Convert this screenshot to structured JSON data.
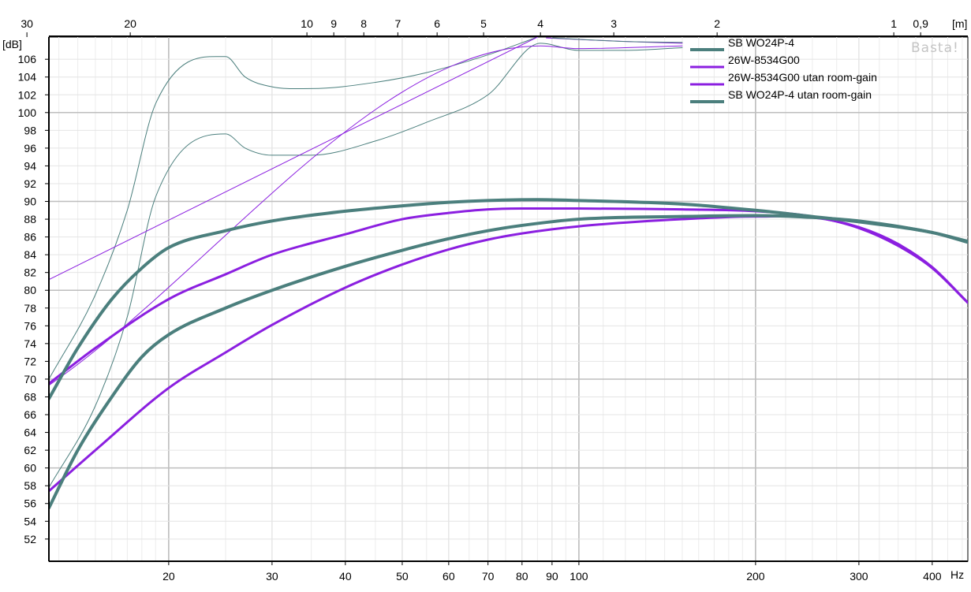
{
  "chart_data": {
    "type": "line",
    "title": "",
    "xlabel": "",
    "ylabel": "",
    "x_scale": "log",
    "xlim": [
      12.5,
      460
    ],
    "ylim": [
      49.5,
      108.5
    ],
    "grid": true,
    "legend_position": "top-right",
    "y_unit": "[dB]",
    "x_unit": "Hz",
    "top_axis_unit": "[m]",
    "watermark": "Basta!",
    "x_ticks": [
      {
        "value": 20,
        "label": "20",
        "major": true
      },
      {
        "value": 30,
        "label": "30"
      },
      {
        "value": 40,
        "label": "40"
      },
      {
        "value": 50,
        "label": "50"
      },
      {
        "value": 60,
        "label": "60"
      },
      {
        "value": 70,
        "label": "70"
      },
      {
        "value": 80,
        "label": "80"
      },
      {
        "value": 90,
        "label": "90"
      },
      {
        "value": 100,
        "label": "100",
        "major": true
      },
      {
        "value": 200,
        "label": "200",
        "major": true
      },
      {
        "value": 300,
        "label": "300"
      },
      {
        "value": 400,
        "label": "400"
      }
    ],
    "x_minor_ticks": [
      13,
      14,
      15,
      16,
      17,
      18,
      19,
      25,
      35,
      45,
      55,
      65,
      75,
      85,
      95,
      110,
      120,
      130,
      140,
      150,
      160,
      170,
      180,
      190,
      225,
      250,
      275,
      325,
      350,
      375,
      425,
      450
    ],
    "top_ticks": [
      {
        "value": 30,
        "label": "30"
      },
      {
        "value": 20,
        "label": "20"
      },
      {
        "value": 10,
        "label": "10"
      },
      {
        "value": 9,
        "label": "9"
      },
      {
        "value": 8,
        "label": "8"
      },
      {
        "value": 7,
        "label": "7"
      },
      {
        "value": 6,
        "label": "6"
      },
      {
        "value": 5,
        "label": "5"
      },
      {
        "value": 4,
        "label": "4"
      },
      {
        "value": 3,
        "label": "3"
      },
      {
        "value": 2,
        "label": "2"
      },
      {
        "value": 1,
        "label": "1"
      },
      {
        "value": 0.9,
        "label": "0,9"
      }
    ],
    "y_ticks": [
      52,
      54,
      56,
      58,
      60,
      62,
      64,
      66,
      68,
      70,
      72,
      74,
      76,
      78,
      80,
      82,
      84,
      86,
      88,
      90,
      92,
      94,
      96,
      98,
      100,
      102,
      104,
      106
    ],
    "series": [
      {
        "name": "SB WO24P-4",
        "color": "#4b7f7d",
        "width": 4,
        "legend": true,
        "points": [
          [
            12.5,
            67.8
          ],
          [
            14,
            73.5
          ],
          [
            16,
            79.0
          ],
          [
            18,
            82.5
          ],
          [
            20,
            84.8
          ],
          [
            25,
            86.7
          ],
          [
            30,
            87.8
          ],
          [
            40,
            88.9
          ],
          [
            50,
            89.5
          ],
          [
            60,
            89.9
          ],
          [
            70,
            90.1
          ],
          [
            85,
            90.2
          ],
          [
            100,
            90.1
          ],
          [
            150,
            89.7
          ],
          [
            200,
            89.0
          ],
          [
            250,
            88.3
          ],
          [
            300,
            87.7
          ],
          [
            400,
            86.5
          ],
          [
            460,
            85.4
          ]
        ]
      },
      {
        "name": "26W-8534G00",
        "color": "#8b1fe0",
        "width": 3,
        "legend": true,
        "points": [
          [
            12.5,
            69.5
          ],
          [
            15,
            73.5
          ],
          [
            20,
            79.0
          ],
          [
            25,
            81.8
          ],
          [
            30,
            84.0
          ],
          [
            40,
            86.3
          ],
          [
            50,
            88.0
          ],
          [
            60,
            88.7
          ],
          [
            70,
            89.1
          ],
          [
            80,
            89.2
          ],
          [
            100,
            89.2
          ],
          [
            150,
            89.1
          ],
          [
            200,
            88.9
          ],
          [
            250,
            88.3
          ],
          [
            300,
            87.0
          ],
          [
            350,
            85.0
          ],
          [
            400,
            82.5
          ],
          [
            460,
            78.6
          ]
        ]
      },
      {
        "name": "26W-8534G00 utan room-gain",
        "color": "#8b1fe0",
        "width": 3,
        "legend": true,
        "points": [
          [
            12.5,
            57.4
          ],
          [
            15,
            62.0
          ],
          [
            20,
            69.0
          ],
          [
            25,
            73.0
          ],
          [
            30,
            76.1
          ],
          [
            40,
            80.3
          ],
          [
            50,
            82.9
          ],
          [
            60,
            84.6
          ],
          [
            70,
            85.7
          ],
          [
            80,
            86.4
          ],
          [
            100,
            87.2
          ],
          [
            150,
            88.0
          ],
          [
            200,
            88.3
          ],
          [
            250,
            88.2
          ],
          [
            300,
            87.1
          ],
          [
            350,
            85.2
          ],
          [
            400,
            82.6
          ],
          [
            460,
            78.6
          ]
        ]
      },
      {
        "name": "SB WO24P-4 utan room-gain",
        "color": "#4b7f7d",
        "width": 4,
        "legend": true,
        "points": [
          [
            12.5,
            55.5
          ],
          [
            14,
            62.0
          ],
          [
            16,
            68.0
          ],
          [
            18,
            72.5
          ],
          [
            20,
            75.0
          ],
          [
            25,
            78.0
          ],
          [
            30,
            80.0
          ],
          [
            40,
            82.7
          ],
          [
            50,
            84.5
          ],
          [
            60,
            85.8
          ],
          [
            70,
            86.7
          ],
          [
            80,
            87.3
          ],
          [
            100,
            88.0
          ],
          [
            150,
            88.3
          ],
          [
            200,
            88.4
          ],
          [
            250,
            88.2
          ],
          [
            300,
            87.8
          ],
          [
            400,
            86.5
          ],
          [
            460,
            85.5
          ]
        ]
      },
      {
        "name": "",
        "color": "#4b7f7d",
        "width": 1,
        "legend": false,
        "points": [
          [
            12.5,
            70.0
          ],
          [
            15,
            79.5
          ],
          [
            17,
            89.0
          ],
          [
            19,
            101.0
          ],
          [
            25,
            106.3
          ],
          [
            27,
            104.0
          ],
          [
            30,
            102.9
          ],
          [
            35,
            102.7
          ],
          [
            45,
            103.4
          ],
          [
            55,
            104.5
          ],
          [
            70,
            106.5
          ],
          [
            85,
            108.5
          ]
        ]
      },
      {
        "name": "",
        "color": "#4b7f7d",
        "width": 1,
        "legend": false,
        "points": [
          [
            12.5,
            57.8
          ],
          [
            15,
            67.0
          ],
          [
            17,
            77.0
          ],
          [
            19,
            90.5
          ],
          [
            25,
            97.6
          ],
          [
            27,
            96.0
          ],
          [
            30,
            95.2
          ],
          [
            35,
            95.2
          ],
          [
            45,
            96.8
          ],
          [
            55,
            98.9
          ],
          [
            70,
            102.0
          ],
          [
            86,
            107.8
          ],
          [
            100,
            107.0
          ],
          [
            120,
            107.0
          ],
          [
            150,
            107.3
          ]
        ]
      },
      {
        "name": "",
        "color": "#8b1fe0",
        "width": 1,
        "legend": false,
        "points": [
          [
            12.5,
            81.2
          ],
          [
            85,
            108.5
          ]
        ]
      },
      {
        "name": "",
        "color": "#8b1fe0",
        "width": 1,
        "legend": false,
        "points": [
          [
            12.5,
            69.3
          ],
          [
            86,
            107.5
          ],
          [
            100,
            107.2
          ],
          [
            150,
            107.5
          ]
        ]
      },
      {
        "name": "",
        "color": "#8b1fe0",
        "width": 1,
        "legend": false,
        "points": [
          [
            88,
            108.4
          ],
          [
            120,
            108.0
          ],
          [
            150,
            107.8
          ]
        ]
      },
      {
        "name": "",
        "color": "#4b7f7d",
        "width": 1,
        "legend": false,
        "points": [
          [
            90,
            108.4
          ],
          [
            120,
            108.0
          ],
          [
            150,
            107.9
          ]
        ]
      }
    ]
  }
}
